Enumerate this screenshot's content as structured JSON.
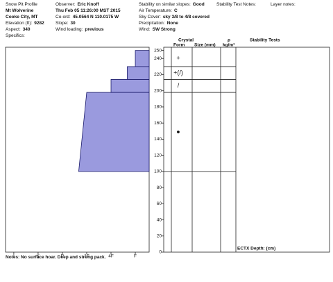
{
  "header": {
    "columns": [
      [
        {
          "label": "Snow Pit Profile"
        },
        {
          "value": "Mt Wolverine"
        },
        {
          "value": "Cooke City, MT"
        },
        {
          "label": "Elevation (ft):",
          "value": "9282"
        },
        {
          "label": "Aspect:",
          "value": "340"
        },
        {
          "label": "Specifics:"
        }
      ],
      [
        {
          "label": "Observer:",
          "value": "Eric Knoff"
        },
        {
          "value": "Thu Feb 05 11:26:00 MST 2015"
        },
        {
          "label": "Co-ord:",
          "value": "45.0564 N 110.0175 W"
        },
        {
          "label": "Slope:",
          "value": "30"
        },
        {
          "label": "Wind loading:",
          "value": "previous"
        }
      ],
      [
        {
          "label": "Stability on similar slopes:",
          "value": "Good"
        },
        {
          "label": "Air Temperature:",
          "value": "C"
        },
        {
          "label": "Sky Cover:",
          "value": "sky 3/8 to 4/8 covered"
        },
        {
          "label": "Precipitation:",
          "value": "None"
        },
        {
          "label": "Wind:",
          "value": "SW Strong"
        }
      ],
      [
        {
          "label": "Stability Test Notes:"
        }
      ],
      [
        {
          "label": "Layer notes:"
        }
      ]
    ]
  },
  "profile": {
    "depth_lim": [
      0,
      254
    ],
    "depth_ticks": [
      0,
      20,
      40,
      60,
      80,
      100,
      120,
      140,
      160,
      180,
      200,
      220,
      240,
      250
    ],
    "hardness_lim": [
      6.34,
      0.43
    ],
    "hardness_ticks": [
      {
        "value": 6,
        "label": "I"
      },
      {
        "value": 5,
        "label": "K"
      },
      {
        "value": 4,
        "label": "P"
      },
      {
        "value": 3,
        "label": "1F"
      },
      {
        "value": 2,
        "label": "4F"
      },
      {
        "value": 1,
        "label": "F"
      }
    ],
    "color": "#9a9ade",
    "layers": [
      {
        "top": 250,
        "bottom": 230,
        "hardness_top": 1,
        "hardness_bottom": 1,
        "form": "+"
      },
      {
        "top": 230,
        "bottom": 214,
        "hardness_top": 1.33,
        "hardness_bottom": 1.33,
        "form": "+(/)"
      },
      {
        "top": 214,
        "bottom": 198,
        "hardness_top": 2,
        "hardness_bottom": 2,
        "form": "/"
      },
      {
        "top": 198,
        "bottom": 100,
        "hardness_top": 3,
        "hardness_bottom": 3.33,
        "form": "●"
      }
    ]
  },
  "table": {
    "crystal": "Crystal",
    "form": "Form",
    "size": "Size (mm)",
    "rho": "ρ",
    "density_unit": "kg/m³",
    "stability": "Stability Tests",
    "ectx": "ECTX Depth: (cm)"
  },
  "notes": "Notes: No surface hoar. Deep and strong pack."
}
